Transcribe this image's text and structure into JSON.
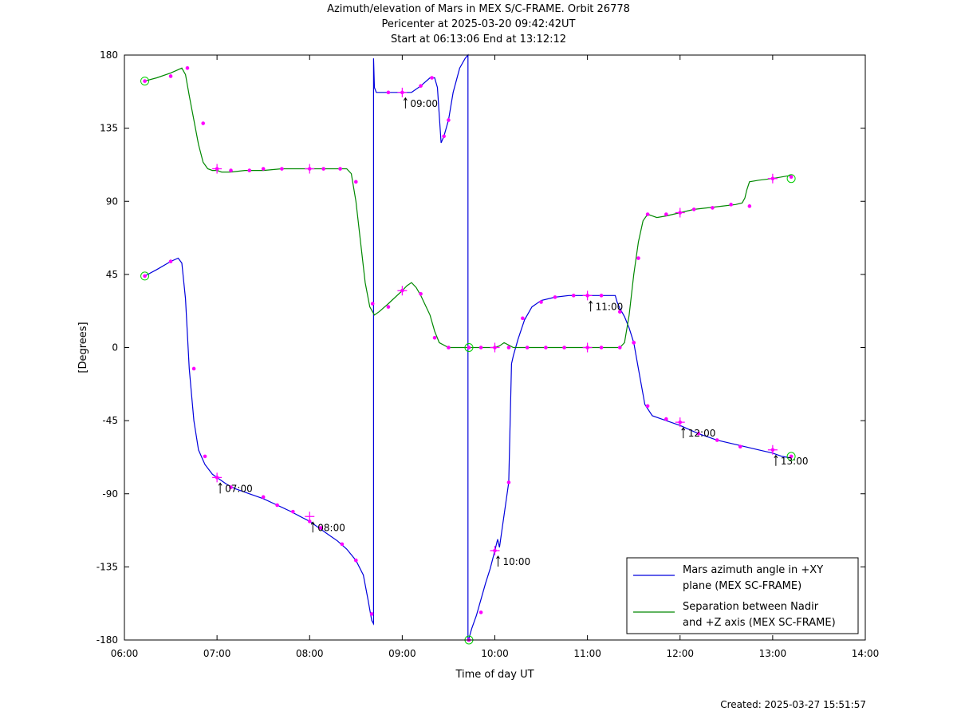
{
  "header": {
    "title": "Azimuth/elevation of Mars in MEX S/C-FRAME.  Orbit 26778",
    "subtitle1": "Pericenter at 2025-03-20 09:42:42UT",
    "subtitle2": "Start at 06:13:06 End at 13:12:12"
  },
  "footer": {
    "created": "Created: 2025-03-27 15:51:57"
  },
  "chart_data": {
    "type": "line",
    "xlabel": "Time of day UT",
    "ylabel": "[Degrees]",
    "xlim": [
      6,
      14
    ],
    "ylim": [
      -180,
      180
    ],
    "x_ticks": [
      {
        "value": 6,
        "label": "06:00"
      },
      {
        "value": 7,
        "label": "07:00"
      },
      {
        "value": 8,
        "label": "08:00"
      },
      {
        "value": 9,
        "label": "09:00"
      },
      {
        "value": 10,
        "label": "10:00"
      },
      {
        "value": 11,
        "label": "11:00"
      },
      {
        "value": 12,
        "label": "12:00"
      },
      {
        "value": 13,
        "label": "13:00"
      },
      {
        "value": 14,
        "label": "14:00"
      }
    ],
    "y_ticks": [
      {
        "value": 180,
        "label": "180"
      },
      {
        "value": 135,
        "label": "135"
      },
      {
        "value": 90,
        "label": "90"
      },
      {
        "value": 45,
        "label": "45"
      },
      {
        "value": 0,
        "label": "0"
      },
      {
        "value": -45,
        "label": "-45"
      },
      {
        "value": -90,
        "label": "-90"
      },
      {
        "value": -135,
        "label": "-135"
      },
      {
        "value": -180,
        "label": "-180"
      }
    ],
    "grid": false,
    "legend_position": "bottom-right",
    "series": [
      {
        "name": "Mars azimuth angle in +XY plane (MEX SC-FRAME)",
        "legend_lines": [
          "Mars azimuth angle in +XY",
          "plane (MEX SC-FRAME)"
        ],
        "color": "#0000dd",
        "x": [
          6.22,
          6.35,
          6.5,
          6.58,
          6.62,
          6.66,
          6.7,
          6.75,
          6.8,
          6.87,
          6.95,
          7.0,
          7.1,
          7.2,
          7.35,
          7.5,
          7.65,
          7.8,
          7.9,
          8.0,
          8.1,
          8.2,
          8.3,
          8.4,
          8.5,
          8.58,
          8.63,
          8.67,
          8.69,
          8.69,
          8.7,
          8.72,
          8.75,
          8.8,
          9.0,
          9.1,
          9.2,
          9.3,
          9.35,
          9.38,
          9.42,
          9.45,
          9.5,
          9.55,
          9.62,
          9.68,
          9.71,
          9.71,
          9.72,
          9.75,
          9.8,
          9.9,
          9.95,
          10.0,
          10.03,
          10.05,
          10.1,
          10.15,
          10.18,
          10.2,
          10.25,
          10.32,
          10.4,
          10.5,
          10.65,
          10.8,
          10.9,
          11.0,
          11.1,
          11.3,
          11.32,
          11.35,
          11.4,
          11.45,
          11.5,
          11.55,
          11.62,
          11.7,
          11.8,
          12.0,
          12.2,
          12.4,
          12.7,
          12.85,
          13.0,
          13.1,
          13.2
        ],
        "y": [
          44,
          48,
          53,
          55,
          52,
          30,
          -13,
          -45,
          -63,
          -72,
          -78,
          -80,
          -84,
          -87,
          -90,
          -93,
          -97,
          -101,
          -104,
          -107,
          -111,
          -115,
          -119,
          -124,
          -131,
          -140,
          -155,
          -168,
          -170,
          178,
          160,
          157,
          157,
          157,
          157,
          157,
          161,
          166,
          166,
          160,
          126,
          130,
          140,
          157,
          172,
          178,
          180,
          -180,
          -179,
          -173,
          -165,
          -145,
          -136,
          -125,
          -118,
          -123,
          -103,
          -83,
          -10,
          -5,
          5,
          17,
          25,
          29,
          31,
          32,
          32,
          32,
          32,
          32,
          28,
          24,
          19,
          12,
          3,
          -13,
          -35,
          -42,
          -44,
          -48,
          -53,
          -57,
          -61,
          -63,
          -65,
          -67,
          -68
        ]
      },
      {
        "name": "Separation between Nadir and +Z axis (MEX SC-FRAME)",
        "legend_lines": [
          "Separation between Nadir",
          "and +Z axis (MEX SC-FRAME)"
        ],
        "color": "#008800",
        "x": [
          6.22,
          6.35,
          6.5,
          6.62,
          6.66,
          6.7,
          6.75,
          6.8,
          6.85,
          6.9,
          6.95,
          7.0,
          7.05,
          7.15,
          7.3,
          7.5,
          7.7,
          7.85,
          8.0,
          8.15,
          8.3,
          8.4,
          8.45,
          8.5,
          8.55,
          8.6,
          8.65,
          8.7,
          8.75,
          8.85,
          9.0,
          9.05,
          9.1,
          9.15,
          9.2,
          9.3,
          9.35,
          9.4,
          9.5,
          9.72,
          9.9,
          10.0,
          10.05,
          10.1,
          10.2,
          10.35,
          10.5,
          10.65,
          10.8,
          11.0,
          11.2,
          11.35,
          11.4,
          11.45,
          11.5,
          11.55,
          11.6,
          11.65,
          11.7,
          11.75,
          11.85,
          12.0,
          12.15,
          12.3,
          12.45,
          12.6,
          12.67,
          12.7,
          12.72,
          12.75,
          12.85,
          13.0,
          13.1,
          13.2
        ],
        "y": [
          164,
          166,
          169,
          172,
          168,
          155,
          140,
          125,
          114,
          110,
          109,
          109,
          108,
          108,
          109,
          109,
          110,
          110,
          110,
          110,
          110,
          110,
          107,
          90,
          65,
          40,
          25,
          20,
          22,
          27,
          35,
          38,
          40,
          37,
          32,
          20,
          10,
          3,
          0,
          0,
          0,
          0,
          1,
          3,
          0,
          0,
          0,
          0,
          0,
          0,
          0,
          0,
          3,
          20,
          45,
          65,
          78,
          82,
          81,
          80,
          81,
          83,
          85,
          86,
          87,
          88,
          89,
          92,
          97,
          102,
          103,
          104,
          105,
          106
        ]
      }
    ],
    "markers": {
      "dot_color": "#ff00ff",
      "circle_color": "#00cc00",
      "dot_points": [
        [
          6.22,
          44
        ],
        [
          6.5,
          53
        ],
        [
          6.75,
          -13
        ],
        [
          6.87,
          -67
        ],
        [
          7.0,
          -80
        ],
        [
          7.15,
          -86
        ],
        [
          7.5,
          -92
        ],
        [
          7.65,
          -97
        ],
        [
          7.82,
          -101
        ],
        [
          8.0,
          -107
        ],
        [
          8.12,
          -111
        ],
        [
          8.35,
          -121
        ],
        [
          8.5,
          -131
        ],
        [
          8.67,
          -164
        ],
        [
          8.85,
          157
        ],
        [
          9.0,
          157
        ],
        [
          9.2,
          161
        ],
        [
          9.32,
          166
        ],
        [
          9.45,
          130
        ],
        [
          9.5,
          140
        ],
        [
          9.72,
          -180
        ],
        [
          9.85,
          -163
        ],
        [
          10.0,
          -125
        ],
        [
          10.15,
          -83
        ],
        [
          10.3,
          18
        ],
        [
          10.5,
          28
        ],
        [
          10.65,
          31
        ],
        [
          10.85,
          32
        ],
        [
          11.0,
          32
        ],
        [
          11.15,
          32
        ],
        [
          11.35,
          22
        ],
        [
          11.5,
          3
        ],
        [
          11.65,
          -36
        ],
        [
          11.85,
          -44
        ],
        [
          12.0,
          -46
        ],
        [
          12.2,
          -53
        ],
        [
          12.4,
          -57
        ],
        [
          12.65,
          -61
        ],
        [
          13.0,
          -63
        ],
        [
          13.2,
          -67
        ],
        [
          6.22,
          164
        ],
        [
          6.5,
          167
        ],
        [
          6.68,
          172
        ],
        [
          6.85,
          138
        ],
        [
          7.0,
          110
        ],
        [
          7.15,
          109
        ],
        [
          7.35,
          109
        ],
        [
          7.5,
          110
        ],
        [
          7.7,
          110
        ],
        [
          8.0,
          110
        ],
        [
          8.15,
          110
        ],
        [
          8.33,
          110
        ],
        [
          8.5,
          102
        ],
        [
          8.68,
          27
        ],
        [
          8.85,
          25
        ],
        [
          9.0,
          35
        ],
        [
          9.2,
          33
        ],
        [
          9.35,
          6
        ],
        [
          9.5,
          0
        ],
        [
          9.72,
          0
        ],
        [
          9.85,
          0
        ],
        [
          10.0,
          0
        ],
        [
          10.15,
          0
        ],
        [
          10.35,
          0
        ],
        [
          10.55,
          0
        ],
        [
          10.75,
          0
        ],
        [
          11.0,
          0
        ],
        [
          11.15,
          0
        ],
        [
          11.35,
          0
        ],
        [
          11.5,
          3
        ],
        [
          11.55,
          55
        ],
        [
          11.65,
          82
        ],
        [
          11.85,
          82
        ],
        [
          12.0,
          83
        ],
        [
          12.15,
          85
        ],
        [
          12.35,
          86
        ],
        [
          12.55,
          88
        ],
        [
          12.75,
          87
        ],
        [
          13.0,
          104
        ],
        [
          13.2,
          105
        ]
      ],
      "plus_points": [
        [
          7.0,
          -80
        ],
        [
          8.0,
          -104
        ],
        [
          9.0,
          35
        ],
        [
          10.0,
          -125
        ],
        [
          11.0,
          32
        ],
        [
          12.0,
          -46
        ],
        [
          13.0,
          -63
        ],
        [
          7.0,
          110
        ],
        [
          8.0,
          110
        ],
        [
          9.0,
          157
        ],
        [
          10.0,
          0
        ],
        [
          11.0,
          0
        ],
        [
          12.0,
          83
        ],
        [
          13.0,
          104
        ]
      ],
      "circle_points": [
        [
          6.22,
          44
        ],
        [
          6.22,
          164
        ],
        [
          9.72,
          -180
        ],
        [
          9.72,
          0
        ],
        [
          13.2,
          -67
        ],
        [
          13.2,
          104
        ]
      ]
    },
    "annotations": [
      {
        "x": 7.0,
        "y": -80,
        "label": "07:00"
      },
      {
        "x": 8.0,
        "y": -104,
        "label": "08:00"
      },
      {
        "x": 9.0,
        "y": 157,
        "label": "09:00"
      },
      {
        "x": 10.0,
        "y": -125,
        "label": "10:00"
      },
      {
        "x": 11.0,
        "y": 32,
        "label": "11:00"
      },
      {
        "x": 12.0,
        "y": -46,
        "label": "12:00"
      },
      {
        "x": 13.0,
        "y": -63,
        "label": "13:00"
      }
    ]
  }
}
